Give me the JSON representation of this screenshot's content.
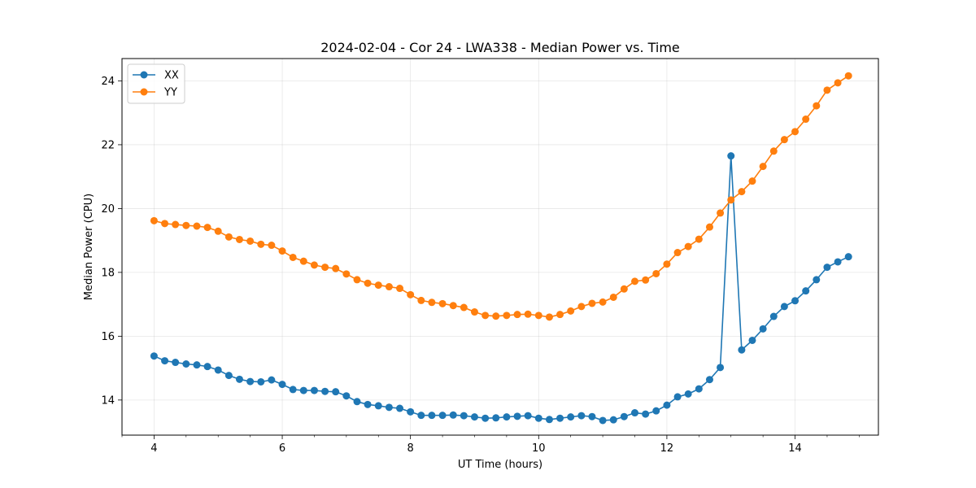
{
  "chart_data": {
    "type": "line",
    "title": "2024-02-04 - Cor 24 - LWA338 - Median Power vs. Time",
    "xlabel": "UT Time (hours)",
    "ylabel": "Median Power (CPU)",
    "xlim": [
      3.5,
      15.3
    ],
    "ylim": [
      12.9,
      24.7
    ],
    "xticks": [
      4,
      6,
      8,
      10,
      12,
      14
    ],
    "xtick_labels": [
      "4",
      "6",
      "8",
      "10",
      "12",
      "14"
    ],
    "xminor_step": 0.5,
    "yticks": [
      14,
      16,
      18,
      20,
      22,
      24
    ],
    "ytick_labels": [
      "14",
      "16",
      "18",
      "20",
      "22",
      "24"
    ],
    "grid": true,
    "legend_position": "top-left",
    "series": [
      {
        "name": "XX",
        "color": "#1f77b4",
        "x": [
          4.0,
          4.167,
          4.333,
          4.5,
          4.667,
          4.833,
          5.0,
          5.167,
          5.333,
          5.5,
          5.667,
          5.833,
          6.0,
          6.167,
          6.333,
          6.5,
          6.667,
          6.833,
          7.0,
          7.167,
          7.333,
          7.5,
          7.667,
          7.833,
          8.0,
          8.167,
          8.333,
          8.5,
          8.667,
          8.833,
          9.0,
          9.167,
          9.333,
          9.5,
          9.667,
          9.833,
          10.0,
          10.167,
          10.333,
          10.5,
          10.667,
          10.833,
          11.0,
          11.167,
          11.333,
          11.5,
          11.667,
          11.833,
          12.0,
          12.167,
          12.333,
          12.5,
          12.667,
          12.833,
          13.0,
          13.167,
          13.333,
          13.5,
          13.667,
          13.833,
          14.0,
          14.167,
          14.333,
          14.5,
          14.667,
          14.833
        ],
        "y": [
          15.38,
          15.23,
          15.18,
          15.13,
          15.1,
          15.05,
          14.94,
          14.77,
          14.65,
          14.58,
          14.57,
          14.63,
          14.49,
          14.33,
          14.3,
          14.3,
          14.27,
          14.26,
          14.13,
          13.95,
          13.86,
          13.82,
          13.77,
          13.74,
          13.63,
          13.52,
          13.52,
          13.52,
          13.53,
          13.51,
          13.47,
          13.43,
          13.44,
          13.47,
          13.49,
          13.51,
          13.43,
          13.39,
          13.43,
          13.47,
          13.51,
          13.48,
          13.36,
          13.38,
          13.48,
          13.6,
          13.56,
          13.66,
          13.84,
          14.1,
          14.19,
          14.35,
          14.64,
          15.02,
          21.65,
          15.57,
          15.87,
          16.23,
          16.62,
          16.93,
          17.11,
          17.42,
          17.77,
          18.16,
          18.33,
          18.49
        ]
      },
      {
        "name": "YY",
        "color": "#ff7f0e",
        "x": [
          4.0,
          4.167,
          4.333,
          4.5,
          4.667,
          4.833,
          5.0,
          5.167,
          5.333,
          5.5,
          5.667,
          5.833,
          6.0,
          6.167,
          6.333,
          6.5,
          6.667,
          6.833,
          7.0,
          7.167,
          7.333,
          7.5,
          7.667,
          7.833,
          8.0,
          8.167,
          8.333,
          8.5,
          8.667,
          8.833,
          9.0,
          9.167,
          9.333,
          9.5,
          9.667,
          9.833,
          10.0,
          10.167,
          10.333,
          10.5,
          10.667,
          10.833,
          11.0,
          11.167,
          11.333,
          11.5,
          11.667,
          11.833,
          12.0,
          12.167,
          12.333,
          12.5,
          12.667,
          12.833,
          13.0,
          13.167,
          13.333,
          13.5,
          13.667,
          13.833,
          14.0,
          14.167,
          14.333,
          14.5,
          14.667,
          14.833
        ],
        "y": [
          19.62,
          19.53,
          19.5,
          19.47,
          19.45,
          19.41,
          19.29,
          19.11,
          19.03,
          18.98,
          18.88,
          18.85,
          18.67,
          18.47,
          18.35,
          18.23,
          18.16,
          18.12,
          17.95,
          17.77,
          17.66,
          17.6,
          17.55,
          17.5,
          17.3,
          17.12,
          17.06,
          17.02,
          16.96,
          16.9,
          16.76,
          16.65,
          16.63,
          16.65,
          16.68,
          16.69,
          16.65,
          16.6,
          16.68,
          16.79,
          16.93,
          17.03,
          17.07,
          17.22,
          17.48,
          17.72,
          17.76,
          17.96,
          18.26,
          18.62,
          18.81,
          19.04,
          19.42,
          19.86,
          20.27,
          20.53,
          20.86,
          21.32,
          21.8,
          22.16,
          22.41,
          22.8,
          23.22,
          23.71,
          23.94,
          24.16
        ]
      }
    ]
  }
}
